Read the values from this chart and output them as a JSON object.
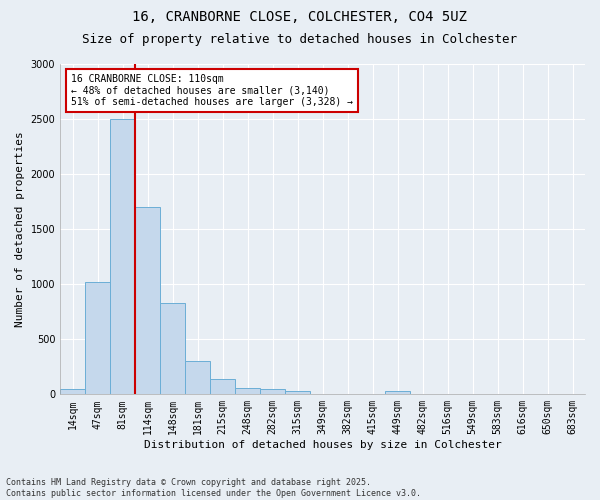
{
  "title1": "16, CRANBORNE CLOSE, COLCHESTER, CO4 5UZ",
  "title2": "Size of property relative to detached houses in Colchester",
  "xlabel": "Distribution of detached houses by size in Colchester",
  "ylabel": "Number of detached properties",
  "categories": [
    "14sqm",
    "47sqm",
    "81sqm",
    "114sqm",
    "148sqm",
    "181sqm",
    "215sqm",
    "248sqm",
    "282sqm",
    "315sqm",
    "349sqm",
    "382sqm",
    "415sqm",
    "449sqm",
    "482sqm",
    "516sqm",
    "549sqm",
    "583sqm",
    "616sqm",
    "650sqm",
    "683sqm"
  ],
  "values": [
    50,
    1020,
    2500,
    1700,
    830,
    300,
    140,
    55,
    50,
    30,
    0,
    0,
    0,
    30,
    0,
    0,
    0,
    0,
    0,
    0,
    0
  ],
  "bar_color": "#c5d8ec",
  "bar_edge_color": "#6baed6",
  "vline_x": 2.5,
  "vline_color": "#cc0000",
  "ylim": [
    0,
    3000
  ],
  "annotation_text": "16 CRANBORNE CLOSE: 110sqm\n← 48% of detached houses are smaller (3,140)\n51% of semi-detached houses are larger (3,328) →",
  "annotation_box_color": "#ffffff",
  "annotation_box_edge": "#cc0000",
  "footer1": "Contains HM Land Registry data © Crown copyright and database right 2025.",
  "footer2": "Contains public sector information licensed under the Open Government Licence v3.0.",
  "bg_color": "#e8eef4",
  "grid_color": "#ffffff",
  "title1_fontsize": 10,
  "title2_fontsize": 9,
  "tick_fontsize": 7,
  "ylabel_fontsize": 8,
  "xlabel_fontsize": 8,
  "annot_fontsize": 7,
  "footer_fontsize": 6
}
